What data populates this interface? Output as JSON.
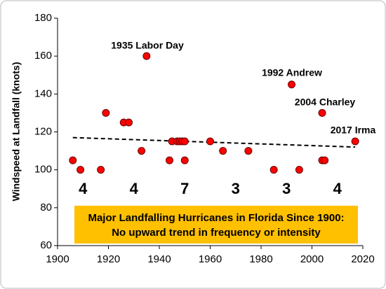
{
  "chart_data": {
    "type": "scatter",
    "y_label": "Windspeed at Landfall (knots)",
    "x": [
      1906,
      1909,
      1917,
      1919,
      1926,
      1928,
      1933,
      1935,
      1944,
      1945,
      1947,
      1948,
      1949,
      1950,
      1950,
      1960,
      1965,
      1975,
      1985,
      1992,
      1995,
      2004,
      2004,
      2005,
      2017
    ],
    "values": [
      105,
      100,
      100,
      130,
      125,
      125,
      110,
      160,
      105,
      115,
      115,
      115,
      115,
      115,
      105,
      115,
      110,
      110,
      100,
      145,
      100,
      130,
      105,
      105,
      115
    ],
    "color": "#ff0000",
    "trend": {
      "x": [
        1906,
        2017
      ],
      "values": [
        117,
        112
      ]
    },
    "xlim": [
      1900,
      2020
    ],
    "xticks": [
      1900,
      1920,
      1940,
      1960,
      1980,
      2000,
      2020
    ],
    "ylim": [
      60,
      180
    ],
    "yticks": [
      60,
      80,
      100,
      120,
      140,
      160,
      180
    ],
    "period_counts": [
      4,
      4,
      7,
      3,
      3,
      4
    ],
    "annotations": [
      "1935 Labor Day",
      "1992 Andrew",
      "2004 Charley",
      "2017 Irma"
    ],
    "box_text": [
      "Major Landfalling Hurricanes in Florida Since 1900:",
      "No upward trend in frequency or intensity"
    ]
  }
}
